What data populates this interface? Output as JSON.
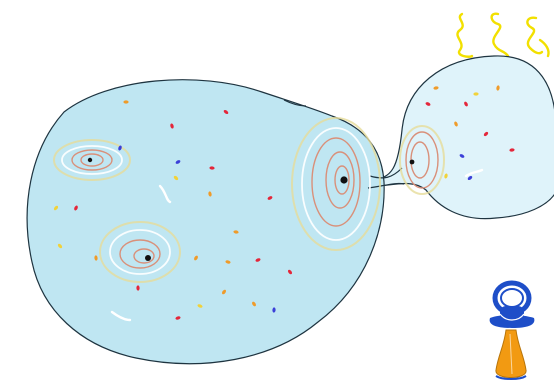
{
  "colors": {
    "background": "#ffffff",
    "big_universe_fill": "#bfe6f2",
    "small_universe_fill": "#dff3fa",
    "outline": "#1e3440",
    "swirl_orange": "#d9907a",
    "swirl_yellow": "#e6dc9a",
    "swirl_white": "#ffffff",
    "black_hole": "#111111",
    "squiggle_yellow": "#f2e000",
    "pacifier_blue": "#1e4ec8",
    "pacifier_orange": "#f29a12",
    "dot_red": "#e4263a",
    "dot_orange": "#ef9b2a",
    "dot_blue": "#3b3fd8",
    "dot_yellow": "#f1d23a"
  },
  "icons": {
    "pacifier": "baby-bottle-pacifier-icon",
    "squiggles": "baby-hair-squiggle-icon"
  }
}
